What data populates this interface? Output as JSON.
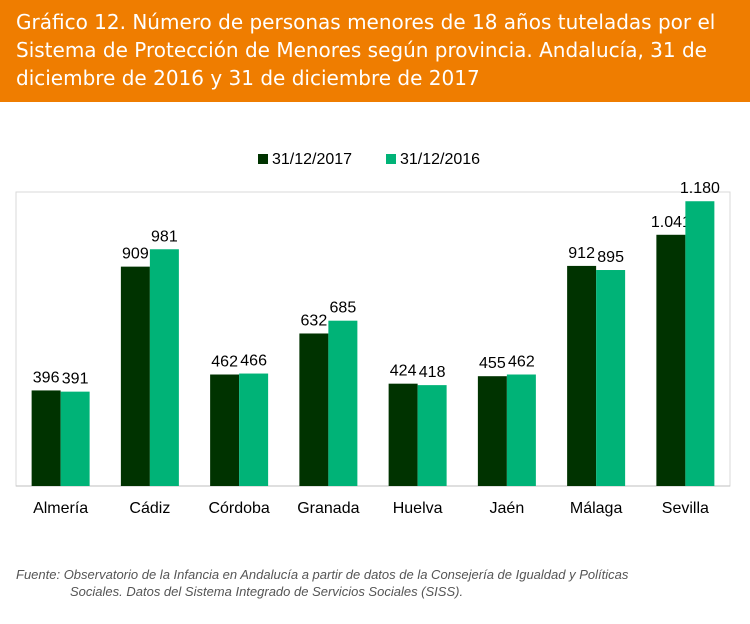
{
  "header": {
    "title": "Gráfico 12. Número de personas menores de 18 años tuteladas por el Sistema de Protección de Menores según provincia. Andalucía, 31 de diciembre de 2016 y 31 de diciembre de 2017"
  },
  "colors": {
    "header_bg": "#ef7d00",
    "series_2017": "#003300",
    "series_2016": "#00b377"
  },
  "chart_data": {
    "type": "bar",
    "title": "",
    "xlabel": "",
    "ylabel": "",
    "ylim": [
      0,
      1200
    ],
    "grid": false,
    "legend_position": "top-center",
    "categories": [
      "Almería",
      "Cádiz",
      "Córdoba",
      "Granada",
      "Huelva",
      "Jaén",
      "Málaga",
      "Sevilla"
    ],
    "series": [
      {
        "name": "31/12/2017",
        "color": "#003300",
        "values": [
          396,
          909,
          462,
          632,
          424,
          455,
          912,
          1041
        ],
        "labels": [
          "396",
          "909",
          "462",
          "632",
          "424",
          "455",
          "912",
          "1.041"
        ]
      },
      {
        "name": "31/12/2016",
        "color": "#00b377",
        "values": [
          391,
          981,
          466,
          685,
          418,
          462,
          895,
          1180
        ],
        "labels": [
          "391",
          "981",
          "466",
          "685",
          "418",
          "462",
          "895",
          "1.180"
        ]
      }
    ]
  },
  "source": {
    "line1": "Fuente: Observatorio de la Infancia en Andalucía a partir de datos de la Consejería de Igualdad y Políticas",
    "line2": "Sociales. Datos del Sistema Integrado de Servicios Sociales (SISS)."
  }
}
